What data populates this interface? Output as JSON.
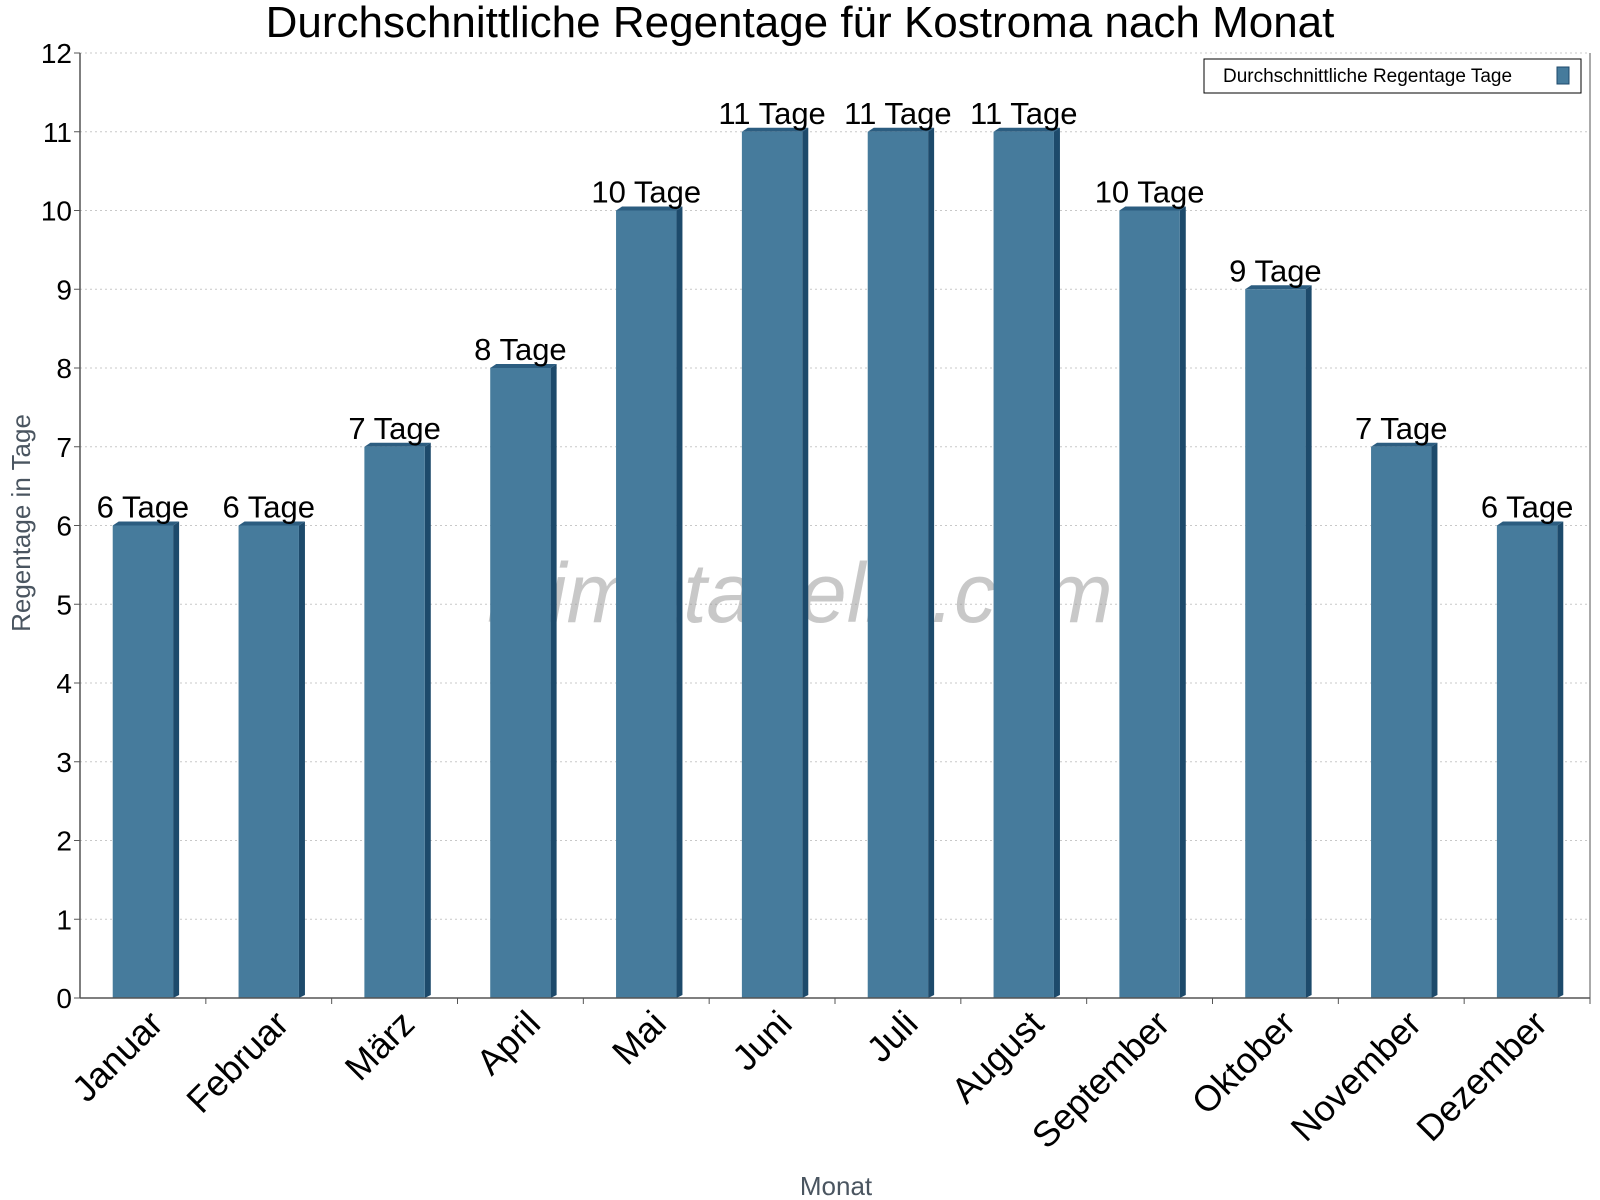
{
  "chart_data": {
    "type": "bar",
    "title": "Durchschnittliche Regentage für Kostroma nach Monat",
    "xlabel": "Monat",
    "ylabel": "Regentage in Tage",
    "ylim": [
      0,
      12
    ],
    "yticks": [
      "0",
      "1",
      "2",
      "3",
      "4",
      "5",
      "6",
      "7",
      "8",
      "9",
      "10",
      "11",
      "12"
    ],
    "categories": [
      "Januar",
      "Februar",
      "März",
      "April",
      "Mai",
      "Juni",
      "Juli",
      "August",
      "September",
      "Oktober",
      "November",
      "Dezember"
    ],
    "series": [
      {
        "name": "Durchschnittliche Regentage Tage",
        "values": [
          6,
          6,
          7,
          8,
          10,
          11,
          11,
          11,
          10,
          9,
          7,
          6
        ],
        "labels": [
          "6 Tage",
          "6 Tage",
          "7 Tage",
          "8 Tage",
          "10 Tage",
          "11 Tage",
          "11 Tage",
          "11 Tage",
          "10 Tage",
          "9 Tage",
          "7 Tage",
          "6 Tage"
        ]
      }
    ],
    "grid": true,
    "legend_position": "top-right",
    "watermark": "klimatabelle.com",
    "colors": {
      "bar": "#467b9c",
      "bar_side": "#1d4a6b",
      "bar_top": "#2c5d80",
      "grid": "#c8c8c8",
      "axis": "#555555"
    }
  }
}
